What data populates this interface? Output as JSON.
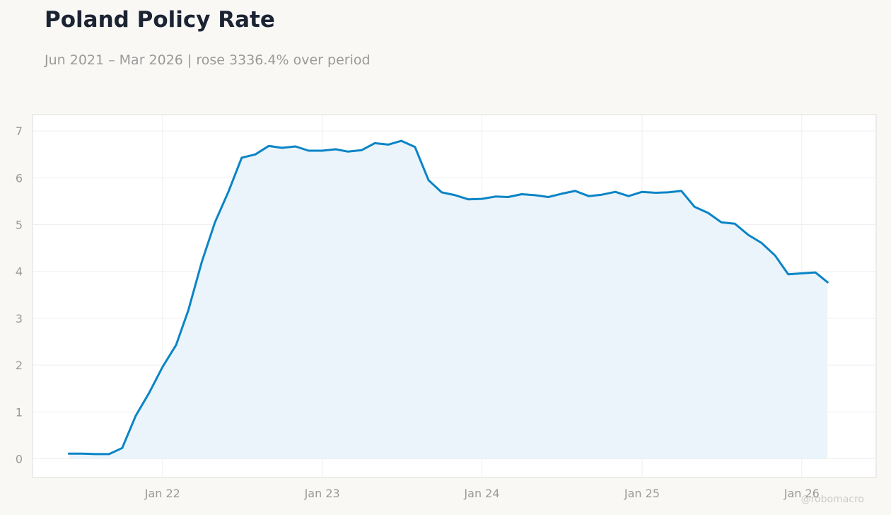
{
  "header": {
    "title": "Poland Policy Rate",
    "subtitle": "Jun 2021 – Mar 2026 | rose 3336.4% over period"
  },
  "watermark": "@robomacro",
  "colors": {
    "background": "#f9f8f5",
    "plot_background": "#ffffff",
    "line": "#0a84c6",
    "fill": "#e9f3fa",
    "grid": "#efefef",
    "title": "#1c2333",
    "muted": "#9a9a9a"
  },
  "chart_data": {
    "type": "area",
    "title": "Poland Policy Rate",
    "subtitle": "Jun 2021 – Mar 2026 | rose 3336.4% over period",
    "xlabel": "",
    "ylabel": "",
    "x_start": "2021-06",
    "x_end": "2026-03",
    "xlim": [
      "2021-03-10",
      "2026-06-20"
    ],
    "ylim": [
      -0.4,
      7.35
    ],
    "xticks": [
      {
        "date": "2022-01",
        "label": "Jan 22"
      },
      {
        "date": "2023-01",
        "label": "Jan 23"
      },
      {
        "date": "2024-01",
        "label": "Jan 24"
      },
      {
        "date": "2025-01",
        "label": "Jan 25"
      },
      {
        "date": "2026-01",
        "label": "Jan 26"
      }
    ],
    "yticks": [
      0,
      1,
      2,
      3,
      4,
      5,
      6,
      7
    ],
    "grid": true,
    "legend": "none",
    "series": [
      {
        "x": [
          "2021-06",
          "2021-07",
          "2021-08",
          "2021-09",
          "2021-10",
          "2021-11",
          "2021-12",
          "2022-01",
          "2022-02",
          "2022-03",
          "2022-04",
          "2022-05",
          "2022-06",
          "2022-07",
          "2022-08",
          "2022-09",
          "2022-10",
          "2022-11",
          "2022-12",
          "2023-01",
          "2023-02",
          "2023-03",
          "2023-04",
          "2023-05",
          "2023-06",
          "2023-07",
          "2023-08",
          "2023-09",
          "2023-10",
          "2023-11",
          "2023-12",
          "2024-01",
          "2024-02",
          "2024-03",
          "2024-04",
          "2024-05",
          "2024-06",
          "2024-07",
          "2024-08",
          "2024-09",
          "2024-10",
          "2024-11",
          "2024-12",
          "2025-01",
          "2025-02",
          "2025-03",
          "2025-04",
          "2025-05",
          "2025-06",
          "2025-07",
          "2025-08",
          "2025-09",
          "2025-10",
          "2025-11",
          "2025-12",
          "2026-01",
          "2026-02",
          "2026-03"
        ],
        "values": [
          0.11,
          0.11,
          0.1,
          0.1,
          0.23,
          0.92,
          1.4,
          1.96,
          2.43,
          3.17,
          4.21,
          5.05,
          5.71,
          6.43,
          6.5,
          6.68,
          6.64,
          6.67,
          6.58,
          6.58,
          6.61,
          6.56,
          6.59,
          6.74,
          6.71,
          6.79,
          6.66,
          5.95,
          5.69,
          5.63,
          5.54,
          5.55,
          5.6,
          5.59,
          5.65,
          5.63,
          5.59,
          5.66,
          5.72,
          5.61,
          5.64,
          5.7,
          5.61,
          5.7,
          5.68,
          5.69,
          5.72,
          5.38,
          5.25,
          5.05,
          5.02,
          4.78,
          4.61,
          4.34,
          3.94,
          3.96,
          3.98,
          3.77
        ]
      }
    ]
  }
}
